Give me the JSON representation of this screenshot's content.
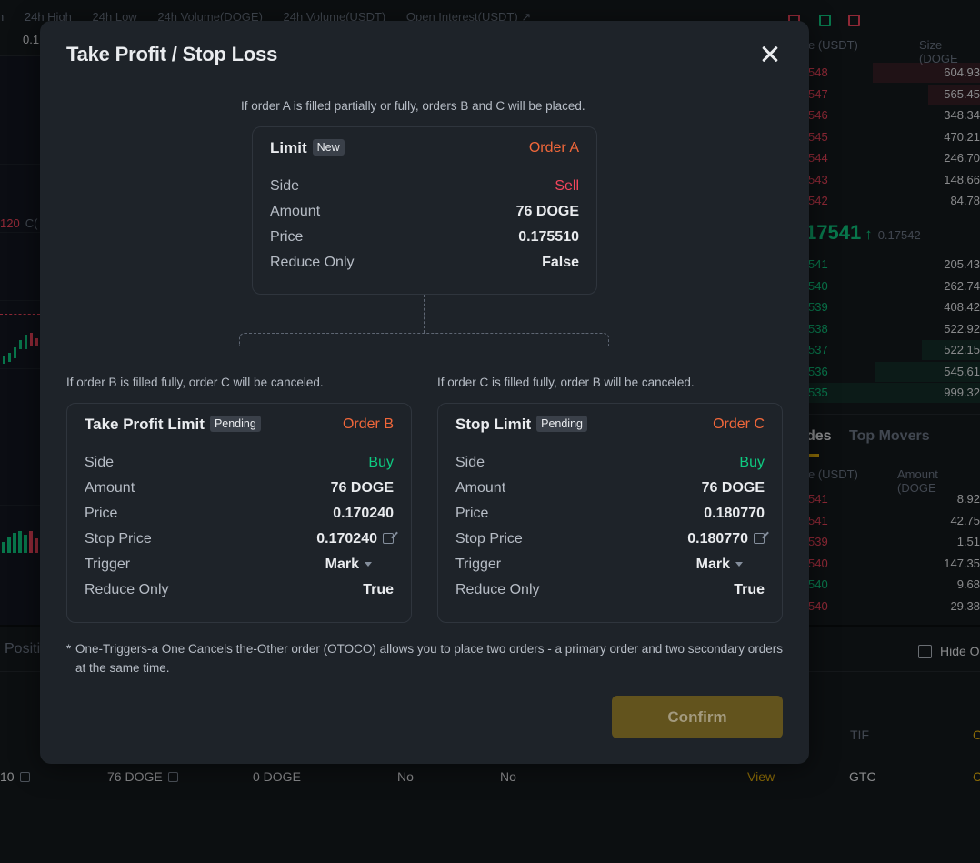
{
  "background": {
    "stats_labels": [
      "n",
      "24h High",
      "24h Low",
      "24h Volume(DOGE)",
      "24h Volume(USDT)",
      "Open Interest(USDT) ↗"
    ],
    "stats_value": "0.1",
    "chart_price_tag": "120",
    "chart_price_tag_suffix": "C(",
    "orderbook_headers": {
      "price": "e (USDT)",
      "size": "Size (DOGE"
    },
    "asks": [
      {
        "price": "548",
        "size": "604.93"
      },
      {
        "price": "547",
        "size": "565.45"
      },
      {
        "price": "546",
        "size": "348.34"
      },
      {
        "price": "545",
        "size": "470.21"
      },
      {
        "price": "544",
        "size": "246.70"
      },
      {
        "price": "543",
        "size": "148.66"
      },
      {
        "price": "542",
        "size": "84.78"
      }
    ],
    "mid_price": "17541",
    "mid_arrow": "↑",
    "mid_mark": "0.17542",
    "bids": [
      {
        "price": "541",
        "size": "205.43"
      },
      {
        "price": "540",
        "size": "262.74"
      },
      {
        "price": "539",
        "size": "408.42"
      },
      {
        "price": "538",
        "size": "522.92"
      },
      {
        "price": "537",
        "size": "522.15"
      },
      {
        "price": "536",
        "size": "545.61"
      },
      {
        "price": "535",
        "size": "999.32"
      }
    ],
    "trades_tabs": {
      "trades": "des",
      "top_movers": "Top Movers"
    },
    "trades_headers": {
      "price": "e (USDT)",
      "amount": "Amount (DOGE"
    },
    "trades": [
      {
        "price": "541",
        "amount": "8.92",
        "side": "sell"
      },
      {
        "price": "541",
        "amount": "42.75",
        "side": "sell"
      },
      {
        "price": "539",
        "amount": "1.51",
        "side": "sell"
      },
      {
        "price": "540",
        "amount": "147.35",
        "side": "sell"
      },
      {
        "price": "540",
        "amount": "9.68",
        "side": "buy"
      },
      {
        "price": "540",
        "amount": "29.38",
        "side": "sell"
      }
    ],
    "positions_tab": "Positi",
    "hide_other": "Hide O",
    "tif_header": "TIF",
    "tif_header_right": "O",
    "order_row": {
      "price": "10",
      "amount": "76 DOGE",
      "filled": "0 DOGE",
      "reduce_only": "No",
      "post_only": "No",
      "trigger": "–",
      "view": "View",
      "tif": "GTC",
      "last": "C"
    }
  },
  "modal": {
    "title": "Take Profit / Stop Loss",
    "note_top": "If order A is filled partially or fully, orders B and C will be placed.",
    "note_left": "If order B is filled fully, order C will be canceled.",
    "note_right": "If order C is filled fully, order B will be canceled.",
    "order_a": {
      "title": "Limit",
      "badge": "New",
      "tag": "Order A",
      "rows": [
        {
          "label": "Side",
          "value": "Sell"
        },
        {
          "label": "Amount",
          "value": "76 DOGE"
        },
        {
          "label": "Price",
          "value": "0.175510"
        },
        {
          "label": "Reduce Only",
          "value": "False"
        }
      ]
    },
    "order_b": {
      "title": "Take Profit Limit",
      "badge": "Pending",
      "tag": "Order B",
      "rows": [
        {
          "label": "Side",
          "value": "Buy"
        },
        {
          "label": "Amount",
          "value": "76 DOGE"
        },
        {
          "label": "Price",
          "value": "0.170240"
        },
        {
          "label": "Stop Price",
          "value": "0.170240"
        },
        {
          "label": "Trigger",
          "value": "Mark"
        },
        {
          "label": "Reduce Only",
          "value": "True"
        }
      ]
    },
    "order_c": {
      "title": "Stop Limit",
      "badge": "Pending",
      "tag": "Order C",
      "rows": [
        {
          "label": "Side",
          "value": "Buy"
        },
        {
          "label": "Amount",
          "value": "76 DOGE"
        },
        {
          "label": "Price",
          "value": "0.180770"
        },
        {
          "label": "Stop Price",
          "value": "0.180770"
        },
        {
          "label": "Trigger",
          "value": "Mark"
        },
        {
          "label": "Reduce Only",
          "value": "True"
        }
      ]
    },
    "footnote_star": "*",
    "footnote": "One-Triggers-a One Cancels the-Other order (OTOCO) allows you to place two orders - a primary order and two secondary orders at the same time.",
    "confirm_label": "Confirm"
  },
  "colors": {
    "sell": "#f6465d",
    "buy": "#0ecb81",
    "order_tag": "#f0673a",
    "accent": "#f0b90b"
  },
  "icons": [
    "close-icon",
    "edit-icon",
    "chevron-down-icon",
    "checkbox-icon"
  ]
}
